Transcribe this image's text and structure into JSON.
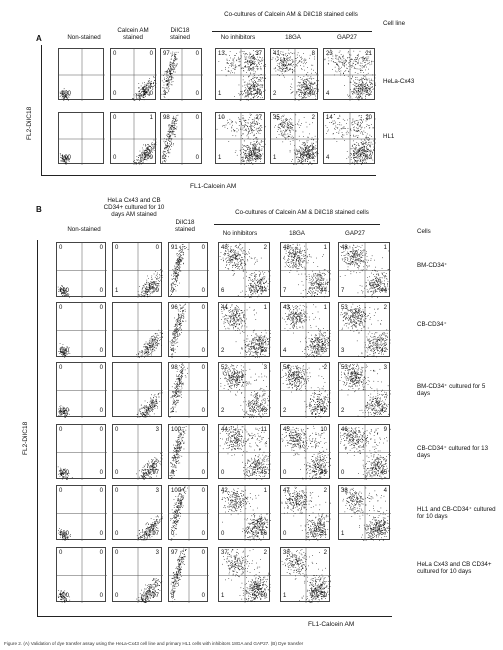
{
  "panelA": {
    "letter": "A",
    "headers": {
      "nonstained": "Non-stained",
      "calcein": "Calcein AM stained",
      "diic": "DiIC18 stained",
      "cocult": "Co-cultures of Calcein AM & DiIC18 stained cells",
      "cellline": "Cell line",
      "noinh": "No inhibitors",
      "ga": "18GA",
      "gap": "GAP27"
    },
    "ylabel": "FL2-DiIC18",
    "xlabel": "FL1-Calcein AM",
    "rows": [
      {
        "label": "HeLa-Cx43",
        "plots": [
          {
            "tl": "",
            "tr": "",
            "bl": "100",
            "br": "",
            "pattern": "ns"
          },
          {
            "tl": "0",
            "tr": "0",
            "bl": "0",
            "br": "100",
            "pattern": "br"
          },
          {
            "tl": "97",
            "tr": "0",
            "bl": "3",
            "br": "0",
            "pattern": "tl"
          },
          {
            "tl": "13",
            "tr": "37",
            "bl": "1",
            "br": "49",
            "pattern": "co"
          },
          {
            "tl": "41",
            "tr": "8",
            "bl": "2",
            "br": "49",
            "pattern": "co"
          },
          {
            "tl": "23",
            "tr": "21",
            "bl": "4",
            "br": "52",
            "pattern": "co"
          }
        ]
      },
      {
        "label": "HL1",
        "plots": [
          {
            "tl": "",
            "tr": "",
            "bl": "100",
            "br": "",
            "pattern": "ns"
          },
          {
            "tl": "0",
            "tr": "1",
            "bl": "0",
            "br": "99",
            "pattern": "br"
          },
          {
            "tl": "98",
            "tr": "0",
            "bl": "2",
            "br": "0",
            "pattern": "tl"
          },
          {
            "tl": "10",
            "tr": "27",
            "bl": "1",
            "br": "62",
            "pattern": "co"
          },
          {
            "tl": "35",
            "tr": "2",
            "bl": "1",
            "br": "62",
            "pattern": "co"
          },
          {
            "tl": "14",
            "tr": "20",
            "bl": "4",
            "br": "62",
            "pattern": "co"
          }
        ]
      }
    ]
  },
  "panelB": {
    "letter": "B",
    "headers": {
      "nonstained": "Non-stained",
      "calcein": "HeLa Cx43 and CB CD34+ cultured for 10 days AM stained",
      "diic": "DiIC18 stained",
      "cocult": "Co-cultures of Calcein AM & DiIC18 stained cells",
      "cells": "Cells",
      "noinh": "No inhibitors",
      "ga": "18GA",
      "gap": "GAP27"
    },
    "ylabel": "FL2-DiIC18",
    "xlabel": "FL1-Calcein AM",
    "rows": [
      {
        "label": "BM-CD34⁺",
        "plots": [
          {
            "tl": "0",
            "tr": "0",
            "bl": "100",
            "br": "0",
            "pattern": "ns"
          },
          {
            "tl": "0",
            "tr": "0",
            "bl": "1",
            "br": "99",
            "pattern": "br"
          },
          {
            "tl": "91",
            "tr": "0",
            "bl": "9",
            "br": "0",
            "pattern": "tl"
          },
          {
            "tl": "48",
            "tr": "2",
            "bl": "6",
            "br": "44",
            "pattern": "co"
          },
          {
            "tl": "48",
            "tr": "1",
            "bl": "7",
            "br": "44",
            "pattern": "co"
          },
          {
            "tl": "48",
            "tr": "1",
            "bl": "7",
            "br": "44",
            "pattern": "co"
          }
        ]
      },
      {
        "label": "CB-CD34⁺",
        "plots": [
          {
            "tl": "0",
            "tr": "0",
            "bl": "100",
            "br": "0",
            "pattern": "ns"
          },
          {
            "tl": "",
            "tr": "",
            "bl": "",
            "br": "",
            "pattern": "br"
          },
          {
            "tl": "96",
            "tr": "0",
            "bl": "4",
            "br": "0",
            "pattern": "tl"
          },
          {
            "tl": "44",
            "tr": "1",
            "bl": "2",
            "br": "53",
            "pattern": "co"
          },
          {
            "tl": "43",
            "tr": "1",
            "bl": "4",
            "br": "53",
            "pattern": "co"
          },
          {
            "tl": "53",
            "tr": "2",
            "bl": "3",
            "br": "42",
            "pattern": "co"
          }
        ]
      },
      {
        "label": "BM-CD34⁺ cultured for 5 days",
        "plots": [
          {
            "tl": "0",
            "tr": "0",
            "bl": "100",
            "br": "0",
            "pattern": "ns"
          },
          {
            "tl": "",
            "tr": "",
            "bl": "",
            "br": "",
            "pattern": "br"
          },
          {
            "tl": "98",
            "tr": "0",
            "bl": "2",
            "br": "0",
            "pattern": "tl"
          },
          {
            "tl": "52",
            "tr": "3",
            "bl": "2",
            "br": "43",
            "pattern": "co"
          },
          {
            "tl": "54",
            "tr": "2",
            "bl": "2",
            "br": "42",
            "pattern": "co"
          },
          {
            "tl": "53",
            "tr": "3",
            "bl": "2",
            "br": "42",
            "pattern": "co"
          }
        ]
      },
      {
        "label": "CB-CD34⁺ cultured for 13 days",
        "plots": [
          {
            "tl": "0",
            "tr": "0",
            "bl": "100",
            "br": "0",
            "pattern": "ns"
          },
          {
            "tl": "0",
            "tr": "3",
            "bl": "0",
            "br": "97",
            "pattern": "br"
          },
          {
            "tl": "100",
            "tr": "0",
            "bl": "0",
            "br": "0",
            "pattern": "tl"
          },
          {
            "tl": "44",
            "tr": "11",
            "bl": "0",
            "br": "45",
            "pattern": "co"
          },
          {
            "tl": "45",
            "tr": "10",
            "bl": "0",
            "br": "45",
            "pattern": "co"
          },
          {
            "tl": "46",
            "tr": "9",
            "bl": "0",
            "br": "45",
            "pattern": "co"
          }
        ]
      },
      {
        "label": "HL1 and CB-CD34⁺ cultured for 10 days",
        "plots": [
          {
            "tl": "0",
            "tr": "0",
            "bl": "100",
            "br": "0",
            "pattern": "ns"
          },
          {
            "tl": "0",
            "tr": "3",
            "bl": "0",
            "br": "97",
            "pattern": "br"
          },
          {
            "tl": "100",
            "tr": "0",
            "bl": "0",
            "br": "0",
            "pattern": "tl"
          },
          {
            "tl": "42",
            "tr": "1",
            "bl": "0",
            "br": "56",
            "pattern": "co"
          },
          {
            "tl": "47",
            "tr": "2",
            "bl": "0",
            "br": "51",
            "pattern": "co"
          },
          {
            "tl": "38",
            "tr": "4",
            "bl": "1",
            "br": "57",
            "pattern": "co"
          }
        ]
      },
      {
        "label": "HeLa Cx43 and CB CD34+ cultured for 10 days",
        "plots": [
          {
            "tl": "0",
            "tr": "0",
            "bl": "100",
            "br": "0",
            "pattern": "ns"
          },
          {
            "tl": "0",
            "tr": "3",
            "bl": "0",
            "br": "97",
            "pattern": "br"
          },
          {
            "tl": "97",
            "tr": "0",
            "bl": "3",
            "br": "0",
            "pattern": "tl"
          },
          {
            "tl": "37",
            "tr": "2",
            "bl": "1",
            "br": "60",
            "pattern": "co"
          },
          {
            "tl": "38",
            "tr": "2",
            "bl": "1",
            "br": "59",
            "pattern": "co"
          },
          {
            "tl": "",
            "tr": "",
            "bl": "",
            "br": "",
            "pattern": "empty"
          }
        ]
      }
    ]
  },
  "caption": "Figure 2. (A) Validation of dye transfer assay using the HeLa-Cx43 cell line and primary HL1 cells with inhibitors 18GA and GAP27. (B) Dye transfer"
}
